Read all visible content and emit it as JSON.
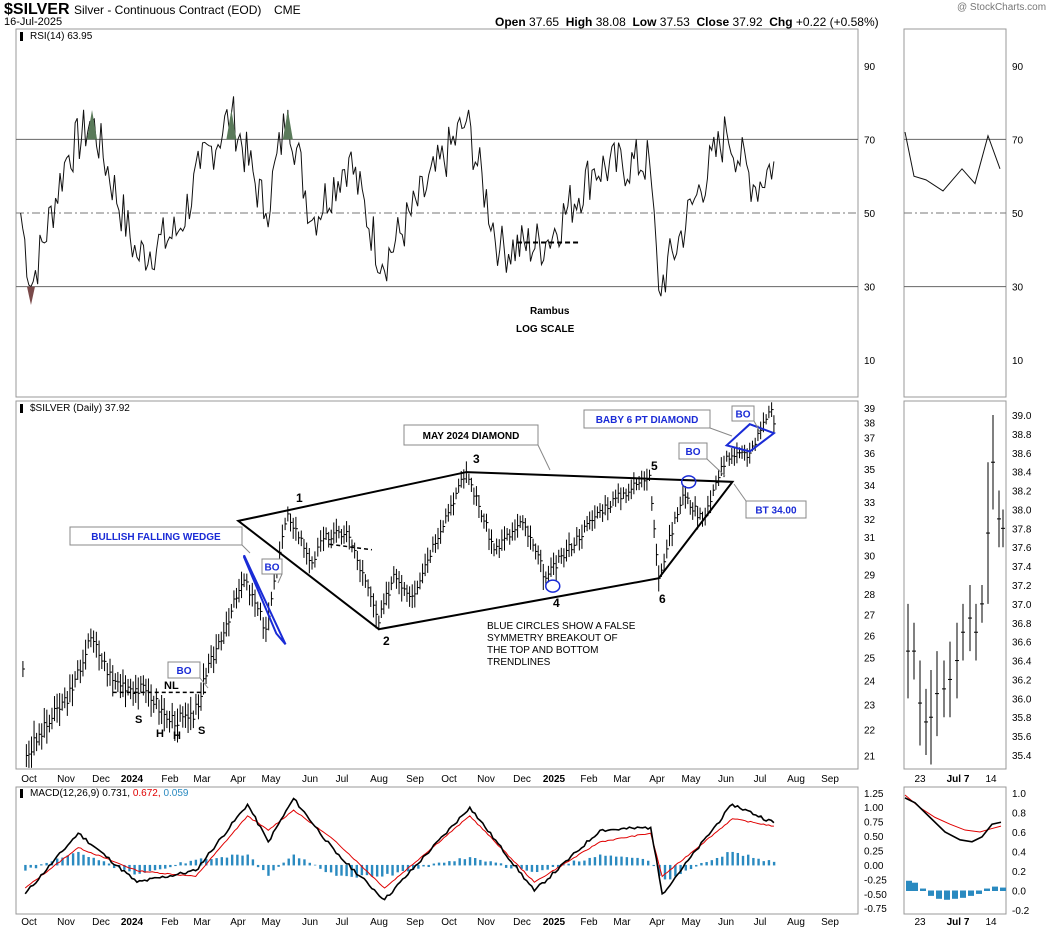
{
  "header": {
    "symbol": "$SILVER",
    "description": "Silver - Continuous Contract (EOD)",
    "exchange": "CME",
    "date": "16-Jul-2025",
    "watermark": "@ StockCharts.com",
    "ohlc": {
      "open_label": "Open",
      "open": "37.65",
      "high_label": "High",
      "high": "38.08",
      "low_label": "Low",
      "low": "37.53",
      "close_label": "Close",
      "close": "37.92",
      "chg_label": "Chg",
      "chg": "+0.22 (+0.58%)"
    }
  },
  "rsi_panel": {
    "label": "RSI(14) 63.95",
    "ticks": [
      "90",
      "70",
      "50",
      "30",
      "10"
    ],
    "tick_values": [
      90,
      70,
      50,
      30,
      10
    ],
    "notes": [
      "Rambus",
      "LOG SCALE"
    ]
  },
  "price_panel": {
    "label": "$SILVER (Daily) 37.92",
    "ticks": [
      "39",
      "38",
      "37",
      "36",
      "35",
      "34",
      "33",
      "32",
      "31",
      "30",
      "29",
      "28",
      "27",
      "26",
      "25",
      "24",
      "23",
      "22",
      "21"
    ],
    "tick_values": [
      39,
      38,
      37,
      36,
      35,
      34,
      33,
      32,
      31,
      30,
      29,
      28,
      27,
      26,
      25,
      24,
      23,
      22,
      21
    ],
    "zoom_ticks": [
      "39.0",
      "38.8",
      "38.6",
      "38.4",
      "38.2",
      "38.0",
      "37.8",
      "37.6",
      "37.4",
      "37.2",
      "37.0",
      "36.8",
      "36.6",
      "36.4",
      "36.2",
      "36.0",
      "35.8",
      "35.6",
      "35.4"
    ],
    "annotations": {
      "wedge": "BULLISH FALLING WEDGE",
      "diamond": "MAY 2024 DIAMOND",
      "baby": "BABY 6 PT DIAMOND",
      "bo": "BO",
      "bt": "BT 34.00",
      "nl": "NL",
      "s": "S",
      "h": "H",
      "circles_note": [
        "BLUE CIRCLES SHOW A FALSE",
        "SYMMETRY BREAKOUT OF",
        "THE TOP AND BOTTOM",
        "TRENDLINES"
      ],
      "points": [
        "1",
        "2",
        "3",
        "4",
        "5",
        "6"
      ]
    }
  },
  "macd_panel": {
    "label": "MACD(12,26,9)",
    "v1": "0.731,",
    "v2": "0.672,",
    "v3": "0.059",
    "colors": {
      "macd": "#000000",
      "signal": "#e00000",
      "hist": "#2a8ac0"
    },
    "ticks": [
      "1.25",
      "1.00",
      "0.75",
      "0.50",
      "0.25",
      "0.00",
      "-0.25",
      "-0.50",
      "-0.75"
    ],
    "tick_values": [
      1.25,
      1.0,
      0.75,
      0.5,
      0.25,
      0.0,
      -0.25,
      -0.5,
      -0.75
    ],
    "zoom_ticks": [
      "1.0",
      "0.8",
      "0.6",
      "0.4",
      "0.2",
      "0.0",
      "-0.2"
    ],
    "zoom_tick_values": [
      1.0,
      0.8,
      0.6,
      0.4,
      0.2,
      0.0,
      -0.2
    ]
  },
  "x_axis": {
    "labels": [
      "Oct",
      "Nov",
      "Dec",
      "2024",
      "Feb",
      "Mar",
      "Apr",
      "May",
      "Jun",
      "Jul",
      "Aug",
      "Sep",
      "Oct",
      "Nov",
      "Dec",
      "2025",
      "Feb",
      "Mar",
      "Apr",
      "May",
      "Jun",
      "Jul",
      "Aug",
      "Sep"
    ],
    "bold": [
      "2024",
      "2025"
    ],
    "zoom_labels": [
      "23",
      "Jul 7",
      "14"
    ]
  },
  "chart_data": {
    "type": "line",
    "title": "$SILVER Silver - Continuous Contract (EOD)",
    "scale": "log",
    "x_range": [
      "2023-10-01",
      "2025-09-30"
    ],
    "ylim": [
      20.5,
      39.5
    ],
    "pivots": [
      {
        "date": "2023-10-03",
        "price": 24.5
      },
      {
        "date": "2023-10-06",
        "price": 21.0
      },
      {
        "date": "2023-11-15",
        "price": 23.6
      },
      {
        "date": "2023-12-01",
        "price": 25.9
      },
      {
        "date": "2023-12-20",
        "price": 24.0
      },
      {
        "date": "2024-01-20",
        "price": 23.5
      },
      {
        "date": "2024-02-05",
        "price": 22.4
      },
      {
        "date": "2024-02-28",
        "price": 22.4
      },
      {
        "date": "2024-03-10",
        "price": 24.2
      },
      {
        "date": "2024-04-12",
        "price": 28.7
      },
      {
        "date": "2024-05-01",
        "price": 26.3
      },
      {
        "date": "2024-05-20",
        "price": 32.3
      },
      {
        "date": "2024-06-10",
        "price": 29.6
      },
      {
        "date": "2024-06-20",
        "price": 30.9
      },
      {
        "date": "2024-07-10",
        "price": 31.3
      },
      {
        "date": "2024-08-07",
        "price": 26.6
      },
      {
        "date": "2024-08-20",
        "price": 29.0
      },
      {
        "date": "2024-09-05",
        "price": 27.9
      },
      {
        "date": "2024-10-22",
        "price": 34.8
      },
      {
        "date": "2024-11-15",
        "price": 30.3
      },
      {
        "date": "2024-12-10",
        "price": 31.8
      },
      {
        "date": "2024-12-30",
        "price": 28.8
      },
      {
        "date": "2025-02-15",
        "price": 32.5
      },
      {
        "date": "2025-03-30",
        "price": 34.6
      },
      {
        "date": "2025-04-07",
        "price": 28.8
      },
      {
        "date": "2025-04-28",
        "price": 33.4
      },
      {
        "date": "2025-05-15",
        "price": 32.0
      },
      {
        "date": "2025-06-05",
        "price": 35.8
      },
      {
        "date": "2025-06-25",
        "price": 36.0
      },
      {
        "date": "2025-07-14",
        "price": 38.9
      },
      {
        "date": "2025-07-16",
        "price": 37.92
      }
    ],
    "trendlines": [
      {
        "name": "diamond",
        "points": [
          [
            "2024-04-07",
            31.9
          ],
          [
            "2024-10-22",
            34.8
          ],
          [
            "2025-06-10",
            34.2
          ],
          [
            "2025-04-07",
            28.8
          ],
          [
            "2024-08-07",
            26.3
          ]
        ]
      },
      {
        "name": "wedge",
        "points": [
          [
            "2024-04-12",
            30.0
          ],
          [
            "2024-05-18",
            25.6
          ],
          [
            "2024-05-10",
            26.1
          ],
          [
            "2024-04-12",
            29.9
          ]
        ]
      },
      {
        "name": "neckline",
        "points": [
          [
            "2023-12-20",
            23.5
          ],
          [
            "2024-03-10",
            23.5
          ]
        ]
      },
      {
        "name": "baby",
        "points": [
          [
            "2025-06-05",
            36.5
          ],
          [
            "2025-06-25",
            37.9
          ],
          [
            "2025-07-16",
            37.3
          ],
          [
            "2025-06-25",
            36.1
          ]
        ]
      }
    ],
    "rsi_pivots": [
      {
        "date": "2023-10-01",
        "value": 50
      },
      {
        "date": "2023-10-10",
        "value": 30
      },
      {
        "date": "2023-11-10",
        "value": 65
      },
      {
        "date": "2023-12-02",
        "value": 75
      },
      {
        "date": "2024-01-10",
        "value": 38
      },
      {
        "date": "2024-02-15",
        "value": 45
      },
      {
        "date": "2024-03-05",
        "value": 62
      },
      {
        "date": "2024-04-01",
        "value": 77
      },
      {
        "date": "2024-05-01",
        "value": 50
      },
      {
        "date": "2024-05-20",
        "value": 78
      },
      {
        "date": "2024-06-10",
        "value": 48
      },
      {
        "date": "2024-07-12",
        "value": 65
      },
      {
        "date": "2024-08-10",
        "value": 36
      },
      {
        "date": "2024-10-22",
        "value": 75
      },
      {
        "date": "2024-11-20",
        "value": 40
      },
      {
        "date": "2024-12-30",
        "value": 42
      },
      {
        "date": "2025-02-10",
        "value": 62
      },
      {
        "date": "2025-03-30",
        "value": 64
      },
      {
        "date": "2025-04-07",
        "value": 29
      },
      {
        "date": "2025-05-10",
        "value": 55
      },
      {
        "date": "2025-06-05",
        "value": 72
      },
      {
        "date": "2025-06-30",
        "value": 57
      },
      {
        "date": "2025-07-16",
        "value": 64
      }
    ],
    "macd_pivots": [
      {
        "date": "2023-10-05",
        "macd": -0.5,
        "signal": -0.4
      },
      {
        "date": "2023-11-20",
        "macd": 0.55,
        "signal": 0.3
      },
      {
        "date": "2024-01-10",
        "macd": -0.3,
        "signal": -0.1
      },
      {
        "date": "2024-03-01",
        "macd": -0.1,
        "signal": -0.2
      },
      {
        "date": "2024-04-15",
        "macd": 1.05,
        "signal": 0.85
      },
      {
        "date": "2024-05-03",
        "macd": 0.4,
        "signal": 0.6
      },
      {
        "date": "2024-05-25",
        "macd": 1.15,
        "signal": 0.95
      },
      {
        "date": "2024-07-01",
        "macd": 0.2,
        "signal": 0.4
      },
      {
        "date": "2024-08-12",
        "macd": -0.6,
        "signal": -0.4
      },
      {
        "date": "2024-10-25",
        "macd": 1.0,
        "signal": 0.85
      },
      {
        "date": "2024-12-20",
        "macd": -0.45,
        "signal": -0.3
      },
      {
        "date": "2025-02-15",
        "macd": 0.6,
        "signal": 0.4
      },
      {
        "date": "2025-03-31",
        "macd": 0.65,
        "signal": 0.55
      },
      {
        "date": "2025-04-10",
        "macd": -0.5,
        "signal": -0.2
      },
      {
        "date": "2025-06-10",
        "macd": 1.05,
        "signal": 0.8
      },
      {
        "date": "2025-07-16",
        "macd": 0.731,
        "signal": 0.672
      }
    ]
  }
}
